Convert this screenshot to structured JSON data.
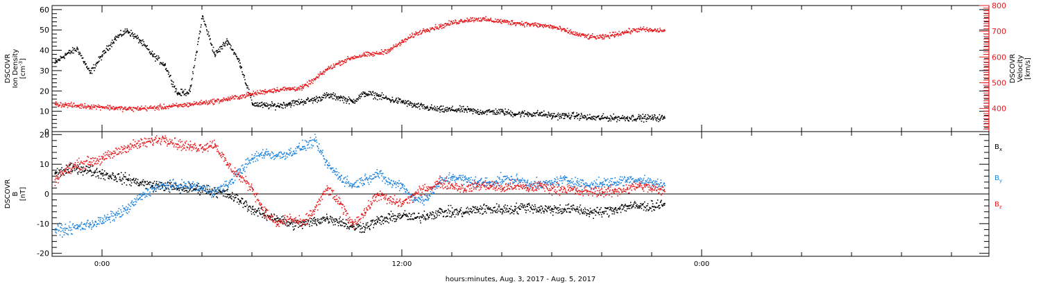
{
  "chart_data": [
    {
      "type": "scatter",
      "panel": "top",
      "ylabel": [
        "DSCOVR",
        "Ion Density",
        "[cm^-3]"
      ],
      "ylabel_right": [
        "DSCOVR",
        "Velocity",
        "[km/s]"
      ],
      "ylim": [
        0,
        62
      ],
      "ylim_right": [
        310,
        800
      ],
      "yticks": [
        0,
        10,
        20,
        30,
        40,
        50,
        60
      ],
      "yticks_right": [
        400,
        500,
        600,
        700,
        800
      ],
      "series": [
        {
          "name": "Ion Density",
          "color": "#000000",
          "axis": "left",
          "x": [
            -1.9,
            -1.5,
            -1.0,
            -0.5,
            0,
            0.5,
            1.0,
            1.5,
            2.0,
            2.5,
            3.0,
            3.5,
            4.0,
            4.5,
            5.0,
            5.5,
            6.0,
            6.5,
            7.0,
            7.5,
            8.0,
            8.5,
            9.0,
            9.5,
            10.0,
            10.5,
            11.0,
            11.5,
            12.0,
            12.5,
            13.0,
            13.5,
            14.0,
            14.5,
            15.0,
            15.5,
            16.0,
            16.5,
            17.0,
            17.5,
            18.0,
            18.5,
            19.0,
            19.5,
            20.0,
            20.5,
            21.0,
            21.5,
            22.0,
            22.5
          ],
          "y": [
            34,
            38,
            41,
            29,
            38,
            46,
            50,
            45,
            38,
            33,
            19,
            20,
            57,
            38,
            45,
            34,
            14,
            13,
            13,
            14,
            15,
            16,
            18,
            17,
            15,
            19,
            18,
            16,
            15,
            13,
            12,
            11,
            11,
            11,
            10,
            10,
            10,
            9,
            9,
            9,
            8,
            8,
            8,
            7,
            7,
            7,
            7,
            7,
            7,
            7
          ]
        },
        {
          "name": "Velocity",
          "color": "#e8191d",
          "axis": "right",
          "x": [
            -1.9,
            -1.5,
            -1.0,
            -0.5,
            0,
            0.5,
            1.0,
            1.5,
            2.0,
            2.5,
            3.0,
            3.5,
            4.0,
            4.5,
            5.0,
            5.5,
            6.0,
            6.5,
            7.0,
            7.5,
            8.0,
            8.5,
            9.0,
            9.5,
            10.0,
            10.5,
            11.0,
            11.5,
            12.0,
            12.5,
            13.0,
            13.5,
            14.0,
            14.5,
            15.0,
            15.5,
            16.0,
            16.5,
            17.0,
            17.5,
            18.0,
            18.5,
            19.0,
            19.5,
            20.0,
            20.5,
            21.0,
            21.5,
            22.0,
            22.5
          ],
          "y": [
            420,
            416,
            412,
            410,
            408,
            404,
            400,
            402,
            404,
            408,
            412,
            418,
            424,
            430,
            438,
            448,
            458,
            468,
            475,
            478,
            482,
            515,
            555,
            580,
            600,
            610,
            615,
            630,
            660,
            690,
            710,
            720,
            735,
            745,
            750,
            745,
            740,
            735,
            730,
            725,
            720,
            705,
            690,
            680,
            678,
            690,
            700,
            710,
            705,
            705
          ]
        }
      ]
    },
    {
      "type": "scatter",
      "panel": "bottom",
      "ylabel": [
        "DSCOVR",
        "B",
        "[nT]"
      ],
      "ylim": [
        -21,
        21
      ],
      "yticks": [
        -20,
        -10,
        0,
        10,
        20
      ],
      "series": [
        {
          "name": "Bx",
          "label_main": "B",
          "label_sub": "x",
          "color": "#000000",
          "x": [
            -1.9,
            -1.5,
            -1.0,
            -0.5,
            0,
            0.5,
            1.0,
            1.5,
            2.0,
            2.5,
            3.0,
            3.5,
            4.0,
            4.5,
            5.0,
            5.5,
            6.0,
            6.5,
            7.0,
            7.5,
            8.0,
            8.5,
            9.0,
            9.5,
            10.0,
            10.5,
            11.0,
            11.5,
            12.0,
            12.5,
            13.0,
            13.5,
            14.0,
            14.5,
            15.0,
            15.5,
            16.0,
            16.5,
            17.0,
            17.5,
            18.0,
            18.5,
            19.0,
            19.5,
            20.0,
            20.5,
            21.0,
            21.5,
            22.0,
            22.5
          ],
          "y": [
            7,
            8,
            9,
            8,
            7,
            6,
            5,
            4,
            3,
            3,
            2,
            2,
            2,
            1,
            0,
            -2,
            -5,
            -7,
            -8,
            -10,
            -10,
            -9,
            -8,
            -9,
            -11,
            -11,
            -9,
            -8,
            -7,
            -8,
            -7,
            -6,
            -6,
            -6,
            -5,
            -5,
            -5,
            -5,
            -4,
            -5,
            -5,
            -5,
            -5,
            -6,
            -6,
            -5,
            -4,
            -4,
            -4,
            -3
          ]
        },
        {
          "name": "By",
          "label_main": "B",
          "label_sub": "y",
          "color": "#1a82e0",
          "x": [
            -1.9,
            -1.5,
            -1.0,
            -0.5,
            0,
            0.5,
            1.0,
            1.5,
            2.0,
            2.5,
            3.0,
            3.5,
            4.0,
            4.5,
            5.0,
            5.5,
            6.0,
            6.5,
            7.0,
            7.5,
            8.0,
            8.5,
            9.0,
            9.5,
            10.0,
            10.5,
            11.0,
            11.5,
            12.0,
            12.5,
            13.0,
            13.5,
            14.0,
            14.5,
            15.0,
            15.5,
            16.0,
            16.5,
            17.0,
            17.5,
            18.0,
            18.5,
            19.0,
            19.5,
            20.0,
            20.5,
            21.0,
            21.5,
            22.0,
            22.5
          ],
          "y": [
            -12,
            -12,
            -11,
            -10,
            -9,
            -7,
            -5,
            -1,
            2,
            3,
            3,
            3,
            2,
            1,
            3,
            8,
            12,
            14,
            13,
            14,
            16,
            18,
            10,
            6,
            3,
            5,
            7,
            4,
            3,
            -2,
            -1,
            4,
            6,
            5,
            4,
            4,
            5,
            5,
            4,
            3,
            4,
            5,
            4,
            3,
            4,
            4,
            5,
            5,
            4,
            3
          ]
        },
        {
          "name": "Bz",
          "label_main": "B",
          "label_sub": "z",
          "color": "#e8191d",
          "x": [
            -1.9,
            -1.5,
            -1.0,
            -0.5,
            0,
            0.5,
            1.0,
            1.5,
            2.0,
            2.5,
            3.0,
            3.5,
            4.0,
            4.5,
            5.0,
            5.5,
            6.0,
            6.5,
            7.0,
            7.5,
            8.0,
            8.5,
            9.0,
            9.5,
            10.0,
            10.5,
            11.0,
            11.5,
            12.0,
            12.5,
            13.0,
            13.5,
            14.0,
            14.5,
            15.0,
            15.5,
            16.0,
            16.5,
            17.0,
            17.5,
            18.0,
            18.5,
            19.0,
            19.5,
            20.0,
            20.5,
            21.0,
            21.5,
            22.0,
            22.5
          ],
          "y": [
            5,
            8,
            10,
            11,
            12,
            14,
            16,
            17,
            18,
            19,
            17,
            16,
            16,
            17,
            10,
            6,
            2,
            -6,
            -10,
            -8,
            -10,
            -5,
            2,
            -3,
            -10,
            -6,
            0,
            -2,
            -3,
            0,
            2,
            4,
            3,
            2,
            3,
            3,
            2,
            3,
            2,
            3,
            2,
            2,
            1,
            1,
            1,
            1,
            2,
            3,
            2,
            1
          ]
        }
      ]
    }
  ],
  "x_axis": {
    "title": "hours:minutes, Aug.  3, 2017 - Aug.  5, 2017",
    "xlim": [
      -2,
      35.5
    ],
    "ticks": [
      {
        "x": 0,
        "label": "0:00"
      },
      {
        "x": 12,
        "label": "12:00"
      },
      {
        "x": 24,
        "label": "0:00"
      }
    ]
  }
}
